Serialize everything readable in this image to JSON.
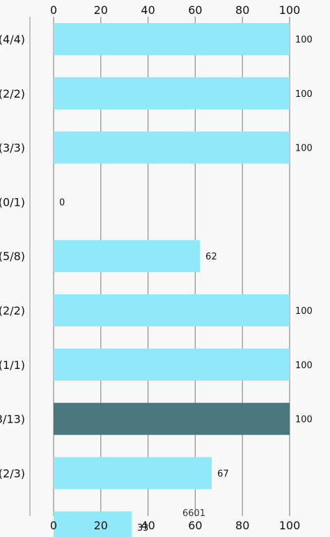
{
  "chart_data": {
    "type": "bar",
    "orientation": "horizontal",
    "categories": [
      "(4/4)",
      "(2/2)",
      "(3/3)",
      "(0/1)",
      "(5/8)",
      "(2/2)",
      "(1/1)",
      "3/13)",
      "(2/3)",
      ""
    ],
    "values": [
      100,
      100,
      100,
      0,
      62,
      100,
      100,
      100,
      67,
      33
    ],
    "value_labels": [
      "100",
      "100",
      "100",
      "0",
      "62",
      "100",
      "100",
      "100",
      "67",
      "33"
    ],
    "highlighted_index": 7,
    "xlim": [
      0,
      100
    ],
    "x_ticks": [
      "0",
      "20",
      "40",
      "60",
      "80",
      "100"
    ],
    "tick_axes": [
      "top",
      "bottom"
    ],
    "grid": true,
    "title": "",
    "xlabel": "",
    "ylabel": "",
    "overlay_text": "6601"
  },
  "colors": {
    "bar": "#8fe9fb",
    "bar_highlight": "#4a787e",
    "gridline": "#8e8e8e",
    "background": "#f8f8f8"
  }
}
